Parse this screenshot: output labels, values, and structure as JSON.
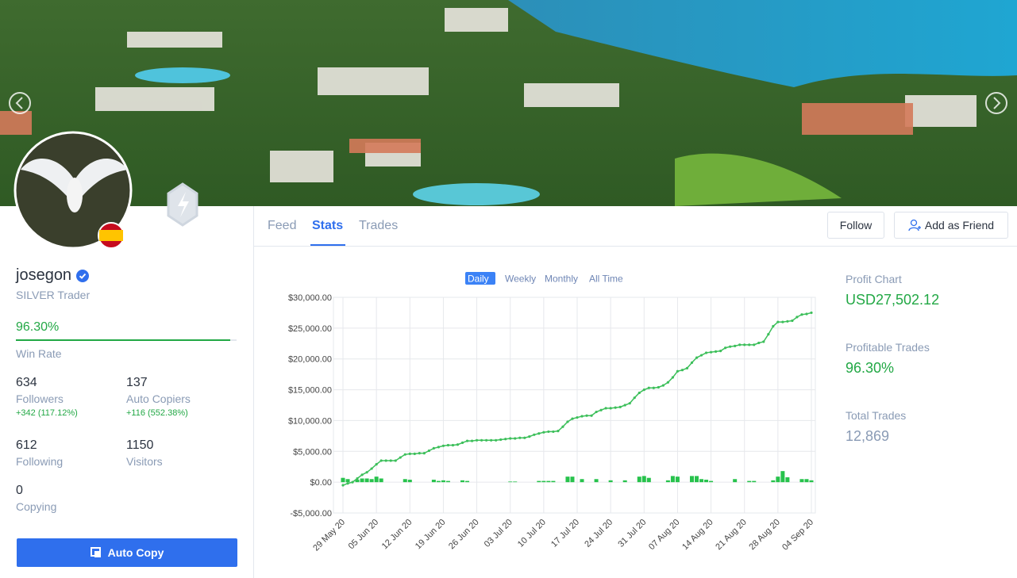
{
  "profile": {
    "name": "josegon",
    "rank": "SILVER Trader",
    "win_rate": "96.30%",
    "win_rate_label": "Win Rate",
    "stats": [
      {
        "value": 634,
        "label": "Followers",
        "change": "+342 (117.12%)"
      },
      {
        "value": 137,
        "label": "Auto Copiers",
        "change": "+116 (552.38%)"
      },
      {
        "value": 612,
        "label": "Following"
      },
      {
        "value": 1150,
        "label": "Visitors"
      },
      {
        "value": 0,
        "label": "Copying"
      }
    ],
    "button": "Auto Copy"
  },
  "tabs": {
    "items": [
      "Feed",
      "Stats",
      "Trades"
    ],
    "active": 1
  },
  "actions": [
    "Follow",
    "Add as Friend"
  ],
  "summary": [
    {
      "label": "Profit Chart",
      "value": "USD27,502.12",
      "color": "#22a845"
    },
    {
      "label": "Profitable Trades",
      "value": "96.30%",
      "color": "#22a845"
    },
    {
      "label": "Total Trades",
      "value": "12,869",
      "color": "#8a9bb5"
    }
  ],
  "chart_data": {
    "type": "line",
    "ranges": [
      "Daily",
      "Weekly",
      "Monthly",
      "All Time"
    ],
    "active_range": 0,
    "categories": [
      "29 May 20",
      null,
      null,
      null,
      null,
      null,
      null,
      "05 Jun 20",
      null,
      null,
      null,
      null,
      null,
      null,
      "12 Jun 20",
      null,
      null,
      null,
      null,
      null,
      null,
      "19 Jun 20",
      null,
      null,
      null,
      null,
      null,
      null,
      "26 Jun 20",
      null,
      null,
      null,
      null,
      null,
      null,
      "03 Jul 20",
      null,
      null,
      null,
      null,
      null,
      null,
      "10 Jul 20",
      null,
      null,
      null,
      null,
      null,
      null,
      "17 Jul 20",
      null,
      null,
      null,
      null,
      null,
      null,
      "24 Jul 20",
      null,
      null,
      null,
      null,
      null,
      null,
      "31 Jul 20",
      null,
      null,
      null,
      null,
      null,
      null,
      "07 Aug 20",
      null,
      null,
      null,
      null,
      null,
      null,
      "14 Aug 20",
      null,
      null,
      null,
      null,
      null,
      null,
      "21 Aug 20",
      null,
      null,
      null,
      null,
      null,
      null,
      "28 Aug 20",
      null,
      null,
      null,
      null,
      null,
      null,
      "04 Sep 20"
    ],
    "series": [
      {
        "type": "line",
        "color": "#3cbf5a",
        "values": [
          -500,
          -200,
          0,
          600,
          1200,
          1600,
          2200,
          2900,
          3500,
          3500,
          3500,
          3500,
          4000,
          4500,
          4600,
          4600,
          4700,
          4700,
          5100,
          5500,
          5700,
          5900,
          6000,
          6000,
          6100,
          6400,
          6700,
          6700,
          6800,
          6800,
          6800,
          6800,
          6800,
          6900,
          7000,
          7100,
          7100,
          7200,
          7200,
          7400,
          7700,
          7900,
          8100,
          8200,
          8200,
          8300,
          9000,
          9800,
          10300,
          10500,
          10700,
          10800,
          10800,
          11400,
          11700,
          12000,
          12000,
          12100,
          12200,
          12500,
          12800,
          13700,
          14500,
          15000,
          15300,
          15300,
          15400,
          15700,
          16200,
          17000,
          18000,
          18200,
          18500,
          19400,
          20200,
          20600,
          21000,
          21100,
          21200,
          21300,
          21800,
          22000,
          22100,
          22300,
          22300,
          22300,
          22300,
          22600,
          22800,
          24000,
          25300,
          26000,
          26000,
          26100,
          26200,
          26800,
          27200,
          27300,
          27500
        ]
      },
      {
        "type": "bar",
        "color": "#27c24c",
        "values": [
          700,
          500,
          0,
          400,
          600,
          600,
          500,
          900,
          600,
          0,
          0,
          0,
          0,
          500,
          400,
          0,
          0,
          0,
          0,
          400,
          200,
          300,
          200,
          0,
          0,
          300,
          200,
          0,
          0,
          0,
          0,
          0,
          0,
          0,
          0,
          100,
          100,
          0,
          0,
          0,
          0,
          200,
          200,
          200,
          200,
          0,
          0,
          900,
          900,
          0,
          500,
          0,
          0,
          500,
          0,
          0,
          300,
          0,
          0,
          300,
          0,
          0,
          900,
          1000,
          700,
          0,
          0,
          0,
          300,
          1000,
          900,
          0,
          0,
          1000,
          1000,
          500,
          400,
          200,
          0,
          0,
          0,
          0,
          500,
          0,
          0,
          200,
          200,
          0,
          0,
          0,
          300,
          900,
          1800,
          800,
          0,
          0,
          500,
          500,
          300
        ]
      }
    ],
    "ylim": [
      -5000,
      30000
    ],
    "yticks": [
      {
        "value": -5000,
        "label": "-$5,000.00"
      },
      {
        "value": 0,
        "label": "$0.00"
      },
      {
        "value": 5000,
        "label": "$5,000.00"
      },
      {
        "value": 10000,
        "label": "$10,000.00"
      },
      {
        "value": 15000,
        "label": "$15,000.00"
      },
      {
        "value": 20000,
        "label": "$20,000.00"
      },
      {
        "value": 25000,
        "label": "$25,000.00"
      },
      {
        "value": 30000,
        "label": "$30,000.00"
      }
    ],
    "grid": true
  }
}
